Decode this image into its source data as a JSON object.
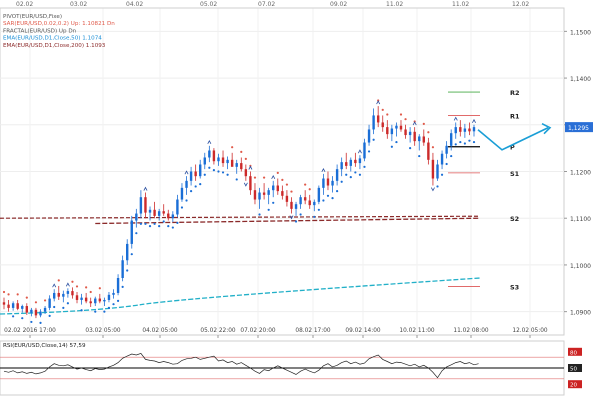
{
  "chart_data": [
    {
      "type": "candlestick",
      "instrument": "EUR/USD",
      "overlay_labels": [
        {
          "text": "PIVOT(EUR/USD,Fixe)",
          "color": "#555555"
        },
        {
          "text": "SAR(EUR/USD,0.02,0.2)    Up: 1.10821    Dn",
          "color": "#e05a4a"
        },
        {
          "text": "FRACTAL(EUR/USD)    Up    Dn",
          "color": "#555555"
        },
        {
          "text": "EMA(EUR/USD,D1,Close,50)    1.1074",
          "color": "#1a8ed6"
        },
        {
          "text": "EMA(EUR/USD,D1,Close,200)    1.1093",
          "color": "#8b2a2a"
        }
      ],
      "top_dates": [
        "02.02",
        "03.02",
        "04.02",
        "05.02",
        "07.02",
        "09.02",
        "11.02",
        "11.02",
        "12.02"
      ],
      "x_tick_labels": [
        "02.02 2016 17:00",
        "03.02 05:00",
        "04.02 05:00",
        "05.02 22:00",
        "07.02 20:00",
        "08.02 17:00",
        "09.02 14:00",
        "10.02 11:00",
        "11.02 08:00",
        "12.02 05:00"
      ],
      "y_tick_labels": [
        "1,1500",
        "1,1400",
        "1,1300",
        "1,1200",
        "1,1100",
        "1,1000",
        "1,0900"
      ],
      "ylim": [
        1.085,
        1.155
      ],
      "current_price_label": "1,1295",
      "current_price": 1.1295,
      "pivot_levels": [
        {
          "name": "R2",
          "value": 1.137,
          "color": "#44aa44"
        },
        {
          "name": "R1",
          "value": 1.132,
          "color": "#dd5555"
        },
        {
          "name": "P",
          "value": 1.1253,
          "color": "#000000"
        },
        {
          "name": "S1",
          "value": 1.1197,
          "color": "#dd5555"
        },
        {
          "name": "S2",
          "value": 1.11,
          "color": "#dd5555"
        },
        {
          "name": "S3",
          "value": 1.0954,
          "color": "#dd5555"
        }
      ],
      "candles": [
        [
          1.092,
          1.093,
          1.0905,
          1.0915
        ],
        [
          1.0915,
          1.0925,
          1.09,
          1.0908
        ],
        [
          1.0908,
          1.0922,
          1.0902,
          1.0918
        ],
        [
          1.0918,
          1.0925,
          1.0903,
          1.0906
        ],
        [
          1.0906,
          1.0915,
          1.0898,
          1.0912
        ],
        [
          1.0912,
          1.0918,
          1.0893,
          1.0898
        ],
        [
          1.0898,
          1.0908,
          1.089,
          1.0904
        ],
        [
          1.0904,
          1.0908,
          1.0886,
          1.0892
        ],
        [
          1.0892,
          1.0905,
          1.0888,
          1.09
        ],
        [
          1.09,
          1.0912,
          1.0895,
          1.0908
        ],
        [
          1.0908,
          1.0935,
          1.0903,
          1.0928
        ],
        [
          1.0928,
          1.0948,
          1.0922,
          1.094
        ],
        [
          1.094,
          1.0955,
          1.0925,
          1.0932
        ],
        [
          1.0932,
          1.0945,
          1.092,
          1.0938
        ],
        [
          1.0938,
          1.095,
          1.093,
          1.0944
        ],
        [
          1.0944,
          1.0952,
          1.0928,
          1.0935
        ],
        [
          1.0935,
          1.0942,
          1.0918,
          1.0925
        ],
        [
          1.0925,
          1.0938,
          1.0915,
          1.093
        ],
        [
          1.093,
          1.094,
          1.0918,
          1.0922
        ],
        [
          1.0922,
          1.093,
          1.091,
          1.0918
        ],
        [
          1.0918,
          1.0932,
          1.0912,
          1.0928
        ],
        [
          1.0928,
          1.0938,
          1.0918,
          1.0922
        ],
        [
          1.0922,
          1.093,
          1.0912,
          1.0925
        ],
        [
          1.0925,
          1.0942,
          1.092,
          1.0936
        ],
        [
          1.0936,
          1.0948,
          1.0928,
          1.094
        ],
        [
          1.094,
          1.098,
          1.0935,
          1.0972
        ],
        [
          1.0972,
          1.102,
          1.0965,
          1.101
        ],
        [
          1.101,
          1.1055,
          1.1,
          1.1045
        ],
        [
          1.1045,
          1.1105,
          1.1035,
          1.1095
        ],
        [
          1.1095,
          1.112,
          1.108,
          1.111
        ],
        [
          1.111,
          1.116,
          1.11,
          1.1145
        ],
        [
          1.1145,
          1.1155,
          1.11,
          1.1112
        ],
        [
          1.1112,
          1.1125,
          1.1095,
          1.1118
        ],
        [
          1.1118,
          1.1135,
          1.11,
          1.1105
        ],
        [
          1.1105,
          1.112,
          1.1095,
          1.1115
        ],
        [
          1.1115,
          1.113,
          1.1105,
          1.111
        ],
        [
          1.111,
          1.1118,
          1.1095,
          1.11
        ],
        [
          1.11,
          1.1115,
          1.1092,
          1.1108
        ],
        [
          1.1108,
          1.115,
          1.1102,
          1.114
        ],
        [
          1.114,
          1.1175,
          1.1135,
          1.1165
        ],
        [
          1.1165,
          1.119,
          1.115,
          1.118
        ],
        [
          1.118,
          1.121,
          1.117,
          1.12
        ],
        [
          1.12,
          1.1215,
          1.118,
          1.119
        ],
        [
          1.119,
          1.1225,
          1.1185,
          1.1215
        ],
        [
          1.1215,
          1.124,
          1.1205,
          1.123
        ],
        [
          1.123,
          1.1255,
          1.122,
          1.1245
        ],
        [
          1.1245,
          1.125,
          1.1215,
          1.1222
        ],
        [
          1.1222,
          1.1238,
          1.1212,
          1.123
        ],
        [
          1.123,
          1.1245,
          1.121,
          1.1218
        ],
        [
          1.1218,
          1.1232,
          1.1205,
          1.1225
        ],
        [
          1.1225,
          1.124,
          1.1215,
          1.121
        ],
        [
          1.121,
          1.1225,
          1.1195,
          1.1218
        ],
        [
          1.1218,
          1.123,
          1.12,
          1.1205
        ],
        [
          1.1205,
          1.1215,
          1.118,
          1.119
        ],
        [
          1.119,
          1.12,
          1.115,
          1.116
        ],
        [
          1.116,
          1.1175,
          1.113,
          1.114
        ],
        [
          1.114,
          1.1165,
          1.112,
          1.1155
        ],
        [
          1.1155,
          1.1175,
          1.114,
          1.115
        ],
        [
          1.115,
          1.1165,
          1.113,
          1.116
        ],
        [
          1.116,
          1.118,
          1.1145,
          1.117
        ],
        [
          1.117,
          1.1185,
          1.115,
          1.1158
        ],
        [
          1.1158,
          1.117,
          1.114,
          1.1148
        ],
        [
          1.1148,
          1.116,
          1.1125,
          1.1135
        ],
        [
          1.1135,
          1.1145,
          1.111,
          1.112
        ],
        [
          1.112,
          1.1135,
          1.1105,
          1.113
        ],
        [
          1.113,
          1.115,
          1.112,
          1.1145
        ],
        [
          1.1145,
          1.116,
          1.113,
          1.1138
        ],
        [
          1.1138,
          1.115,
          1.112,
          1.1128
        ],
        [
          1.1128,
          1.114,
          1.1115,
          1.1135
        ],
        [
          1.1135,
          1.117,
          1.113,
          1.1165
        ],
        [
          1.1165,
          1.1195,
          1.115,
          1.1185
        ],
        [
          1.1185,
          1.12,
          1.116,
          1.117
        ],
        [
          1.117,
          1.119,
          1.1155,
          1.118
        ],
        [
          1.118,
          1.1215,
          1.117,
          1.1205
        ],
        [
          1.1205,
          1.123,
          1.119,
          1.122
        ],
        [
          1.122,
          1.124,
          1.1205,
          1.1212
        ],
        [
          1.1212,
          1.123,
          1.12,
          1.1225
        ],
        [
          1.1225,
          1.124,
          1.121,
          1.1218
        ],
        [
          1.1218,
          1.1235,
          1.1205,
          1.1228
        ],
        [
          1.1228,
          1.127,
          1.1222,
          1.1262
        ],
        [
          1.1262,
          1.13,
          1.1255,
          1.129
        ],
        [
          1.129,
          1.1335,
          1.128,
          1.132
        ],
        [
          1.132,
          1.134,
          1.1295,
          1.1305
        ],
        [
          1.1305,
          1.132,
          1.1285,
          1.1295
        ],
        [
          1.1295,
          1.131,
          1.127,
          1.128
        ],
        [
          1.128,
          1.13,
          1.1265,
          1.1292
        ],
        [
          1.1292,
          1.1305,
          1.1275,
          1.1298
        ],
        [
          1.1298,
          1.131,
          1.1285,
          1.129
        ],
        [
          1.129,
          1.13,
          1.127,
          1.1278
        ],
        [
          1.1278,
          1.1295,
          1.1262,
          1.1285
        ],
        [
          1.1285,
          1.1295,
          1.1255,
          1.1265
        ],
        [
          1.1265,
          1.128,
          1.1245,
          1.1275
        ],
        [
          1.1275,
          1.129,
          1.1255,
          1.1262
        ],
        [
          1.1262,
          1.1272,
          1.1215,
          1.1225
        ],
        [
          1.1225,
          1.124,
          1.117,
          1.1185
        ],
        [
          1.1185,
          1.1225,
          1.118,
          1.1215
        ],
        [
          1.1215,
          1.1245,
          1.1205,
          1.1238
        ],
        [
          1.1238,
          1.1265,
          1.1228,
          1.1255
        ],
        [
          1.1255,
          1.129,
          1.1245,
          1.1282
        ],
        [
          1.1282,
          1.1305,
          1.127,
          1.1295
        ],
        [
          1.1295,
          1.131,
          1.1275,
          1.1285
        ],
        [
          1.1285,
          1.1302,
          1.1272,
          1.1292
        ],
        [
          1.1292,
          1.1305,
          1.1278,
          1.1286
        ],
        [
          1.1286,
          1.13,
          1.1275,
          1.1295
        ]
      ],
      "forecast_arrow": {
        "from_price": 1.1285,
        "via_price": 1.1255,
        "to_price": 1.1298
      }
    },
    {
      "type": "line",
      "title": "RSI(EUR/USD,Close,14)    57,59",
      "y_tick_labels": [
        "80",
        "50",
        "20"
      ],
      "ylim": [
        0,
        100
      ],
      "levels": [
        70,
        50,
        30
      ],
      "values": [
        44,
        42,
        45,
        41,
        43,
        40,
        42,
        39,
        41,
        44,
        52,
        58,
        55,
        54,
        56,
        52,
        48,
        50,
        47,
        45,
        49,
        47,
        48,
        52,
        55,
        60,
        68,
        72,
        76,
        74,
        77,
        66,
        64,
        63,
        60,
        62,
        60,
        57,
        58,
        64,
        67,
        68,
        70,
        66,
        68,
        70,
        72,
        63,
        65,
        60,
        62,
        57,
        60,
        55,
        50,
        44,
        40,
        47,
        45,
        50,
        54,
        50,
        46,
        42,
        38,
        44,
        48,
        44,
        41,
        46,
        54,
        58,
        52,
        55,
        60,
        63,
        58,
        61,
        57,
        59,
        67,
        71,
        74,
        66,
        62,
        58,
        61,
        60,
        57,
        54,
        57,
        52,
        55,
        50,
        42,
        32,
        45,
        52,
        56,
        60,
        62,
        58,
        60,
        56,
        58
      ]
    }
  ]
}
